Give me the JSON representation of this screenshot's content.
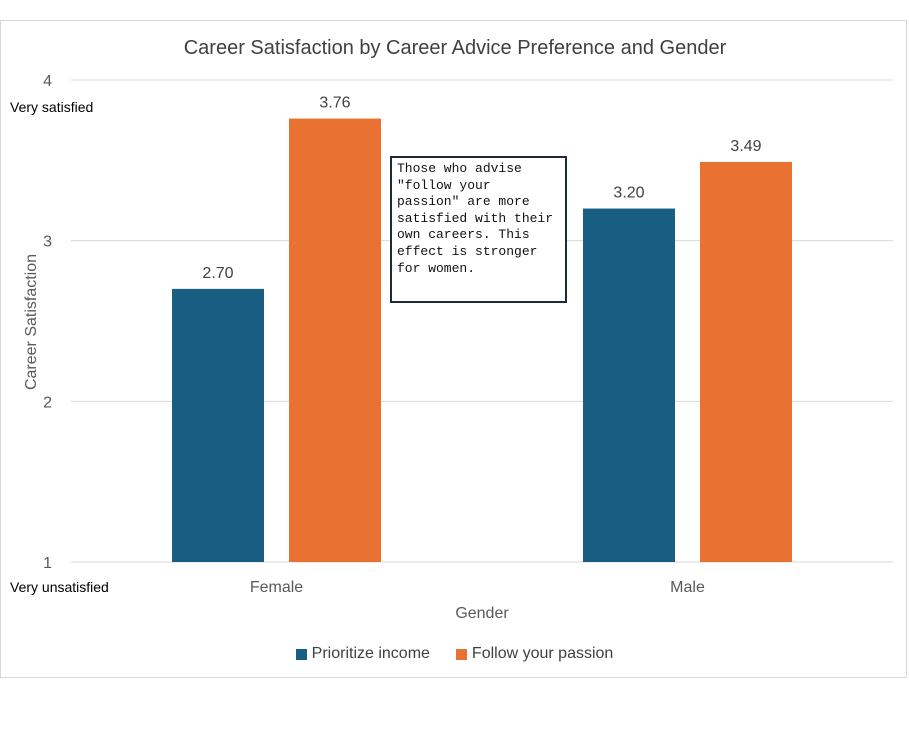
{
  "chart_data": {
    "type": "bar",
    "title": "Career Satisfaction by Career Advice Preference and Gender",
    "xlabel": "Gender",
    "ylabel": "Career Satisfaction",
    "categories": [
      "Female",
      "Male"
    ],
    "series": [
      {
        "name": "Prioritize income",
        "values": [
          2.7,
          3.2
        ],
        "labels": [
          "2.70",
          "3.20"
        ],
        "color": "#175e82"
      },
      {
        "name": "Follow your passion",
        "values": [
          3.76,
          3.49
        ],
        "labels": [
          "3.76",
          "3.49"
        ],
        "color": "#e97132"
      }
    ],
    "ylim": [
      1,
      4
    ],
    "yticks": [
      1,
      2,
      3,
      4
    ],
    "y_top_note": "Very satisfied",
    "y_bottom_note": "Very unsatisfied",
    "annotation": "Those who advise \"follow your passion\" are more satisfied with their own careers. This effect is stronger for women.",
    "grid": true,
    "legend_position": "bottom"
  },
  "colors": {
    "gridline": "#d9d9d9",
    "text": "#595959",
    "title": "#404040"
  }
}
